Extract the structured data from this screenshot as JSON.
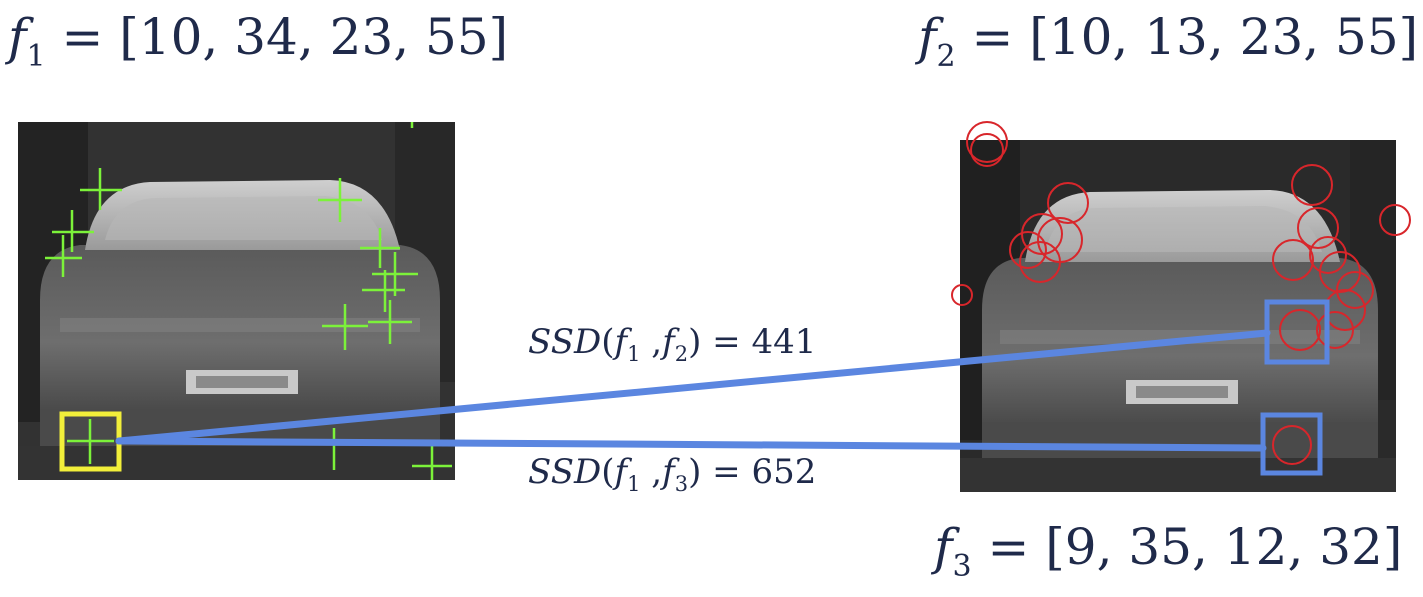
{
  "f1": {
    "name": "f",
    "sub": "1",
    "vector": "= [10, 34, 23, 55]"
  },
  "f2": {
    "name": "f",
    "sub": "2",
    "vector": "= [10, 13, 23, 55]"
  },
  "f3": {
    "name": "f",
    "sub": "3",
    "vector": "= [9, 35, 12, 32]"
  },
  "ssd12": {
    "fn": "SSD",
    "open": "(",
    "a": "f",
    "a_sub": "1",
    "sep": " ,",
    "b": "f",
    "b_sub": "2",
    "close": ")",
    "result": " = 441"
  },
  "ssd13": {
    "fn": "SSD",
    "open": "(",
    "a": "f",
    "a_sub": "1",
    "sep": " ,",
    "b": "f",
    "b_sub": "3",
    "close": ")",
    "result": " = 652"
  },
  "colors": {
    "text": "#1f2a4a",
    "match_line": "#5b86e0",
    "query_box": "#f2ef3a",
    "candidate_box": "#5b86e0",
    "keypoint_cross": "#7cf23a",
    "keypoint_circle": "#d8262b"
  },
  "icons": {
    "left_image": "car-rear-photo-icon",
    "right_image": "car-rear-photo-icon"
  }
}
